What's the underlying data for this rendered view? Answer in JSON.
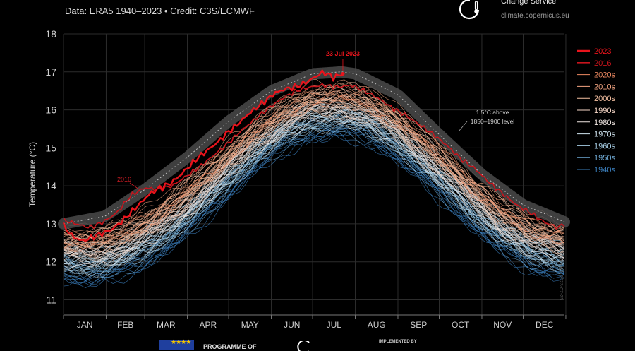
{
  "header": {
    "subtitle": "Data: ERA5 1940–2023 • Credit: C3S/ECMWF",
    "brand_line": "Change Service",
    "brand_url": "climate.copernicus.eu"
  },
  "footer": {
    "programme": "PROGRAMME OF",
    "implemented_by": "IMPLEMENTED BY",
    "side_credit": "created: 2023-07-25"
  },
  "colors": {
    "background": "#000000",
    "year_2023": "#e8141c",
    "year_2016": "#c8141c",
    "band_1_5C": "#4a4a4a",
    "dec_2020s": "#ef8a62",
    "dec_2010s": "#f4a582",
    "dec_2000s": "#f6c1a2",
    "dec_1990s": "#f7d7c7",
    "dec_1980s": "#f0e6e2",
    "dec_1970s": "#d1e5f0",
    "dec_1960s": "#a6cde4",
    "dec_1950s": "#6ea8d2",
    "dec_1940s": "#3b7fbd"
  },
  "chart_data": {
    "type": "line",
    "ylabel": "Temperature (°C)",
    "xlabel": "",
    "ylim": [
      10.6,
      18
    ],
    "yticks": [
      11,
      12,
      13,
      14,
      15,
      16,
      17,
      18
    ],
    "months": [
      "JAN",
      "FEB",
      "MAR",
      "APR",
      "MAY",
      "JUN",
      "JUL",
      "AUG",
      "SEP",
      "OCT",
      "NOV",
      "DEC"
    ],
    "grid": true,
    "legend_placement": "right",
    "legend": [
      "2023",
      "2016",
      "2020s",
      "2010s",
      "2000s",
      "1990s",
      "1980s",
      "1970s",
      "1960s",
      "1950s",
      "1940s"
    ],
    "annotations": {
      "peak": "23 Jul 2023",
      "year_2016": "2016",
      "threshold": [
        "1.5°C above",
        "1850–1900 level"
      ]
    },
    "threshold_1_5C": {
      "x_day": [
        1,
        31,
        60,
        91,
        121,
        152,
        182,
        203,
        213,
        244,
        274,
        305,
        335,
        365
      ],
      "y": [
        13.0,
        13.2,
        13.9,
        14.75,
        15.7,
        16.5,
        16.95,
        17.0,
        16.95,
        16.4,
        15.35,
        14.3,
        13.5,
        13.05
      ]
    },
    "series_2023": {
      "x_day": [
        1,
        8,
        15,
        22,
        29,
        36,
        43,
        50,
        57,
        64,
        71,
        78,
        85,
        92,
        99,
        106,
        113,
        120,
        127,
        134,
        141,
        148,
        155,
        162,
        169,
        176,
        183,
        190,
        197,
        204,
        206
      ],
      "y": [
        12.95,
        12.65,
        12.55,
        12.65,
        12.75,
        12.85,
        13.05,
        13.3,
        13.55,
        13.8,
        13.95,
        14.05,
        14.25,
        14.5,
        14.75,
        14.95,
        15.15,
        15.4,
        15.6,
        15.85,
        16.05,
        16.25,
        16.45,
        16.55,
        16.6,
        16.7,
        16.85,
        17.0,
        16.85,
        16.95,
        16.95
      ]
    },
    "series_2016": {
      "x_day": [
        1,
        10,
        20,
        30,
        40,
        50,
        60,
        70,
        80,
        90,
        100,
        110,
        120,
        130,
        140,
        150,
        160,
        170,
        180,
        190,
        200,
        210,
        220,
        230,
        240,
        250,
        260,
        270,
        280,
        290,
        300,
        310,
        320,
        330,
        340,
        350,
        360,
        365
      ],
      "y": [
        13.1,
        13.0,
        12.9,
        13.05,
        13.3,
        13.75,
        13.95,
        13.9,
        14.0,
        14.25,
        14.5,
        14.8,
        15.1,
        15.45,
        15.75,
        16.05,
        16.3,
        16.5,
        16.6,
        16.65,
        16.6,
        16.65,
        16.5,
        16.3,
        16.05,
        15.85,
        15.6,
        15.35,
        15.05,
        14.7,
        14.45,
        14.1,
        13.8,
        13.5,
        13.3,
        13.05,
        12.9,
        13.0
      ]
    },
    "climatology": {
      "x_day": [
        1,
        20,
        40,
        60,
        80,
        100,
        120,
        140,
        160,
        180,
        200,
        220,
        240,
        260,
        280,
        300,
        320,
        340,
        365
      ],
      "mean_1940s": [
        11.7,
        11.6,
        11.75,
        12.05,
        12.55,
        13.15,
        13.85,
        14.55,
        15.05,
        15.4,
        15.5,
        15.35,
        14.95,
        14.35,
        13.65,
        13.0,
        12.4,
        11.95,
        11.75
      ],
      "mean_2020s": [
        12.75,
        12.7,
        12.85,
        13.2,
        13.7,
        14.3,
        14.95,
        15.6,
        16.1,
        16.45,
        16.55,
        16.4,
        16.0,
        15.45,
        14.8,
        14.1,
        13.5,
        13.05,
        12.85
      ]
    }
  }
}
